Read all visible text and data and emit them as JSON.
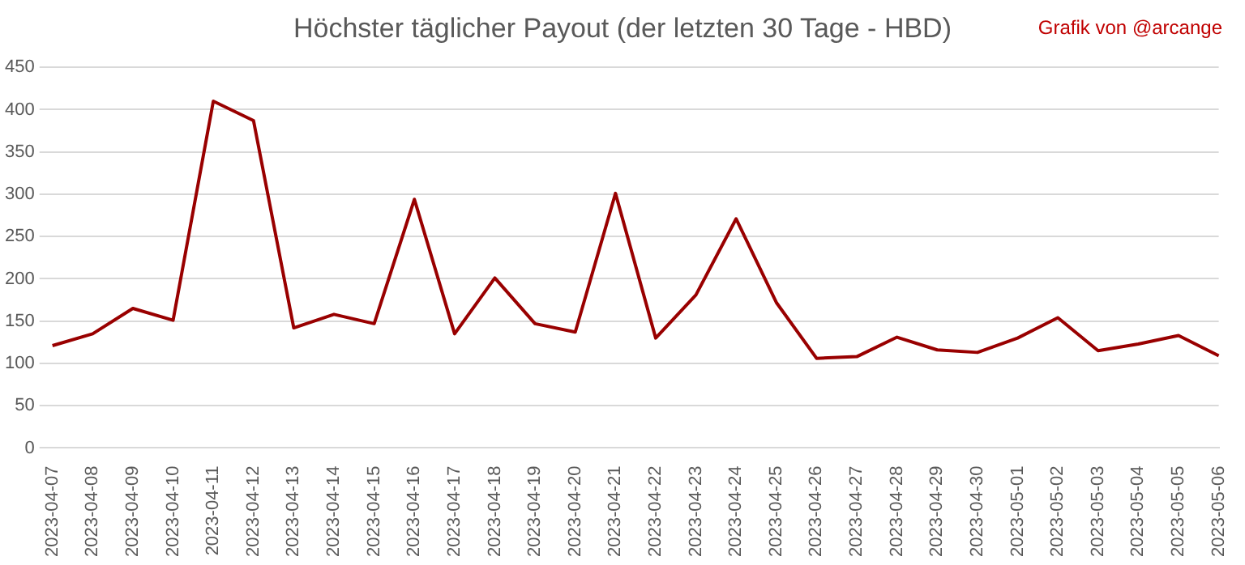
{
  "chart_data": {
    "type": "line",
    "title": "Höchster täglicher Payout (der letzten 30 Tage - HBD)",
    "annotations": [
      "Grafik von @arcange"
    ],
    "categories": [
      "2023-04-07",
      "2023-04-08",
      "2023-04-09",
      "2023-04-10",
      "2023-04-11",
      "2023-04-12",
      "2023-04-13",
      "2023-04-14",
      "2023-04-15",
      "2023-04-16",
      "2023-04-17",
      "2023-04-18",
      "2023-04-19",
      "2023-04-20",
      "2023-04-21",
      "2023-04-22",
      "2023-04-23",
      "2023-04-24",
      "2023-04-25",
      "2023-04-26",
      "2023-04-27",
      "2023-04-28",
      "2023-04-29",
      "2023-04-30",
      "2023-05-01",
      "2023-05-02",
      "2023-05-03",
      "2023-05-04",
      "2023-05-05",
      "2023-05-06"
    ],
    "series": [
      {
        "color": "#990000",
        "values": [
          121,
          135,
          165,
          151,
          410,
          387,
          142,
          158,
          147,
          294,
          135,
          201,
          147,
          137,
          301,
          130,
          181,
          271,
          172,
          106,
          108,
          131,
          116,
          113,
          130,
          154,
          115,
          123,
          133,
          109
        ]
      }
    ],
    "ylim": [
      0,
      450
    ],
    "yticks": [
      0,
      50,
      100,
      150,
      200,
      250,
      300,
      350,
      400,
      450
    ],
    "grid": "y",
    "legend": false,
    "marker": "none",
    "line_style": "solid"
  }
}
